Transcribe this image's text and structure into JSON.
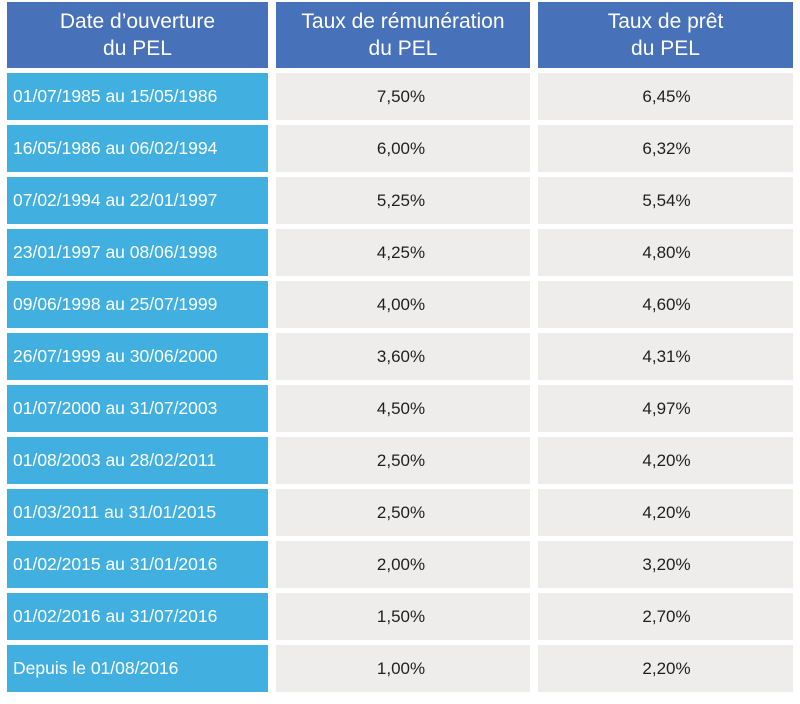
{
  "header": {
    "col1_line1": "Date d’ouverture",
    "col1_line2": "du PEL",
    "col2_line1": "Taux de rémunération",
    "col2_line2": "du PEL",
    "col3_line1": "Taux de prêt",
    "col3_line2": "du PEL"
  },
  "rows": [
    {
      "period": "01/07/1985 au 15/05/1986",
      "remuneration": "7,50%",
      "pret": "6,45%"
    },
    {
      "period": "16/05/1986 au 06/02/1994",
      "remuneration": "6,00%",
      "pret": "6,32%"
    },
    {
      "period": "07/02/1994 au 22/01/1997",
      "remuneration": "5,25%",
      "pret": "5,54%"
    },
    {
      "period": "23/01/1997 au 08/06/1998",
      "remuneration": "4,25%",
      "pret": "4,80%"
    },
    {
      "period": "09/06/1998 au 25/07/1999",
      "remuneration": "4,00%",
      "pret": "4,60%"
    },
    {
      "period": "26/07/1999 au 30/06/2000",
      "remuneration": "3,60%",
      "pret": "4,31%"
    },
    {
      "period": "01/07/2000 au 31/07/2003",
      "remuneration": "4,50%",
      "pret": "4,97%"
    },
    {
      "period": "01/08/2003 au 28/02/2011",
      "remuneration": "2,50%",
      "pret": "4,20%"
    },
    {
      "period": "01/03/2011 au 31/01/2015",
      "remuneration": "2,50%",
      "pret": "4,20%"
    },
    {
      "period": "01/02/2015 au 31/01/2016",
      "remuneration": "2,00%",
      "pret": "3,20%"
    },
    {
      "period": "01/02/2016 au 31/07/2016",
      "remuneration": "1,50%",
      "pret": "2,70%"
    },
    {
      "period": "Depuis le 01/08/2016",
      "remuneration": "1,00%",
      "pret": "2,20%"
    }
  ],
  "colors": {
    "header_bg": "#4771b9",
    "period_bg": "#41b0e0",
    "value_bg": "#efedeb"
  }
}
